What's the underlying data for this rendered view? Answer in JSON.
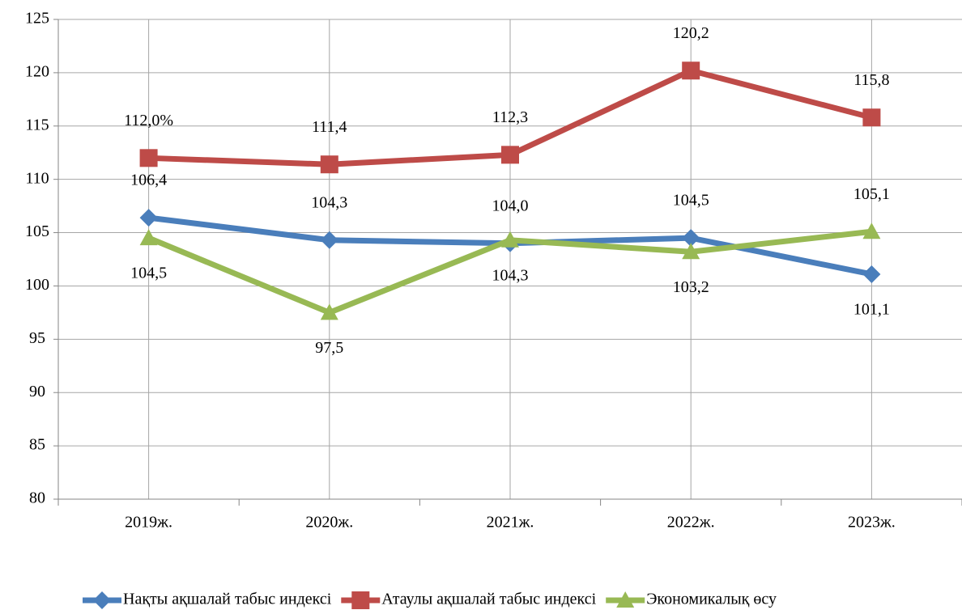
{
  "chart_data": {
    "type": "line",
    "categories": [
      "2019ж.",
      "2020ж.",
      "2021ж.",
      "2022ж.",
      "2023ж."
    ],
    "series": [
      {
        "name": "Нақты ақшалай табыс индексі",
        "color": "#4a7ebb",
        "marker": "diamond",
        "values": [
          106.4,
          104.3,
          104.0,
          104.5,
          101.1
        ],
        "value_labels": [
          "106,4",
          "104,3",
          "104,0",
          "104,5",
          "101,1"
        ]
      },
      {
        "name": "Атаулы ақшалай табыс индексі",
        "color": "#be4b48",
        "marker": "square",
        "values": [
          112.0,
          111.4,
          112.3,
          120.2,
          115.8
        ],
        "value_labels": [
          "112,0%",
          "111,4",
          "112,3",
          "120,2",
          "115,8"
        ]
      },
      {
        "name": "Экономикалық өсу",
        "color": "#98b954",
        "marker": "triangle",
        "values": [
          104.5,
          97.5,
          104.3,
          103.2,
          105.1
        ],
        "value_labels": [
          "104,5",
          "97,5",
          "104,3",
          "103,2",
          "105,1"
        ]
      }
    ],
    "ylim": [
      80,
      125
    ],
    "yticks": [
      80,
      85,
      90,
      95,
      100,
      105,
      110,
      115,
      120,
      125
    ],
    "grid": true,
    "legend": "bottom"
  }
}
